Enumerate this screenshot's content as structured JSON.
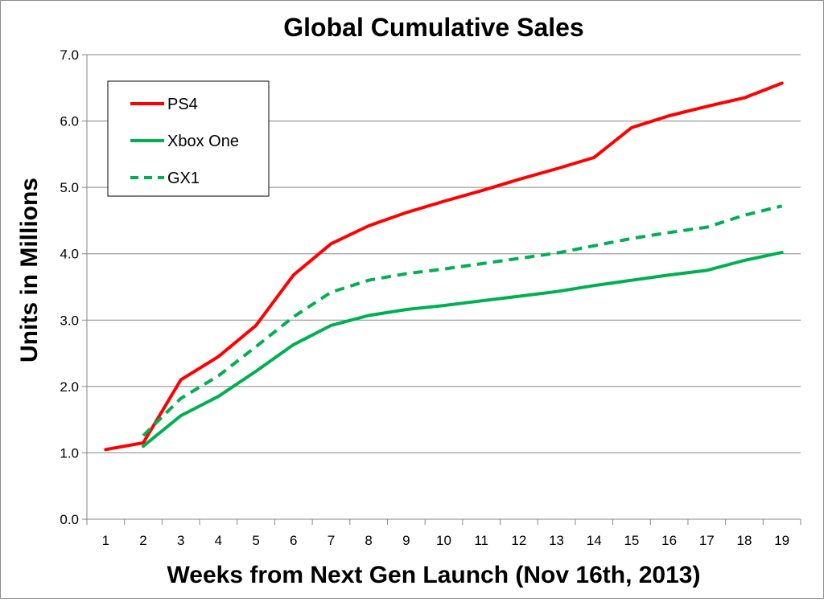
{
  "chart_data": {
    "type": "line",
    "title": "Global Cumulative Sales",
    "xlabel": "Weeks from Next Gen Launch (Nov 16th, 2013)",
    "ylabel": "Units in Millions",
    "x": [
      1,
      2,
      3,
      4,
      5,
      6,
      7,
      8,
      9,
      10,
      11,
      12,
      13,
      14,
      15,
      16,
      17,
      18,
      19
    ],
    "ylim": [
      0,
      7
    ],
    "yticks": [
      "0.0",
      "1.0",
      "2.0",
      "3.0",
      "4.0",
      "5.0",
      "6.0",
      "7.0"
    ],
    "grid": true,
    "legend_position": "top-left",
    "series": [
      {
        "name": "PS4",
        "color": "#ff0000",
        "style": "solid",
        "values": [
          1.05,
          1.15,
          2.1,
          2.45,
          2.92,
          3.68,
          4.15,
          4.42,
          4.62,
          4.79,
          4.95,
          5.12,
          5.28,
          5.45,
          5.9,
          6.08,
          6.22,
          6.35,
          6.57
        ]
      },
      {
        "name": "Xbox One",
        "color": "#00b050",
        "style": "solid",
        "values": [
          null,
          1.1,
          1.56,
          1.85,
          2.23,
          2.63,
          2.92,
          3.07,
          3.16,
          3.22,
          3.29,
          3.36,
          3.43,
          3.52,
          3.6,
          3.68,
          3.75,
          3.9,
          4.02
        ]
      },
      {
        "name": "GX1",
        "color": "#00b050",
        "style": "dashed",
        "values": [
          null,
          1.26,
          1.82,
          2.16,
          2.6,
          3.05,
          3.42,
          3.6,
          3.7,
          3.77,
          3.85,
          3.93,
          4.01,
          4.12,
          4.23,
          4.32,
          4.4,
          4.58,
          4.72
        ]
      }
    ]
  }
}
